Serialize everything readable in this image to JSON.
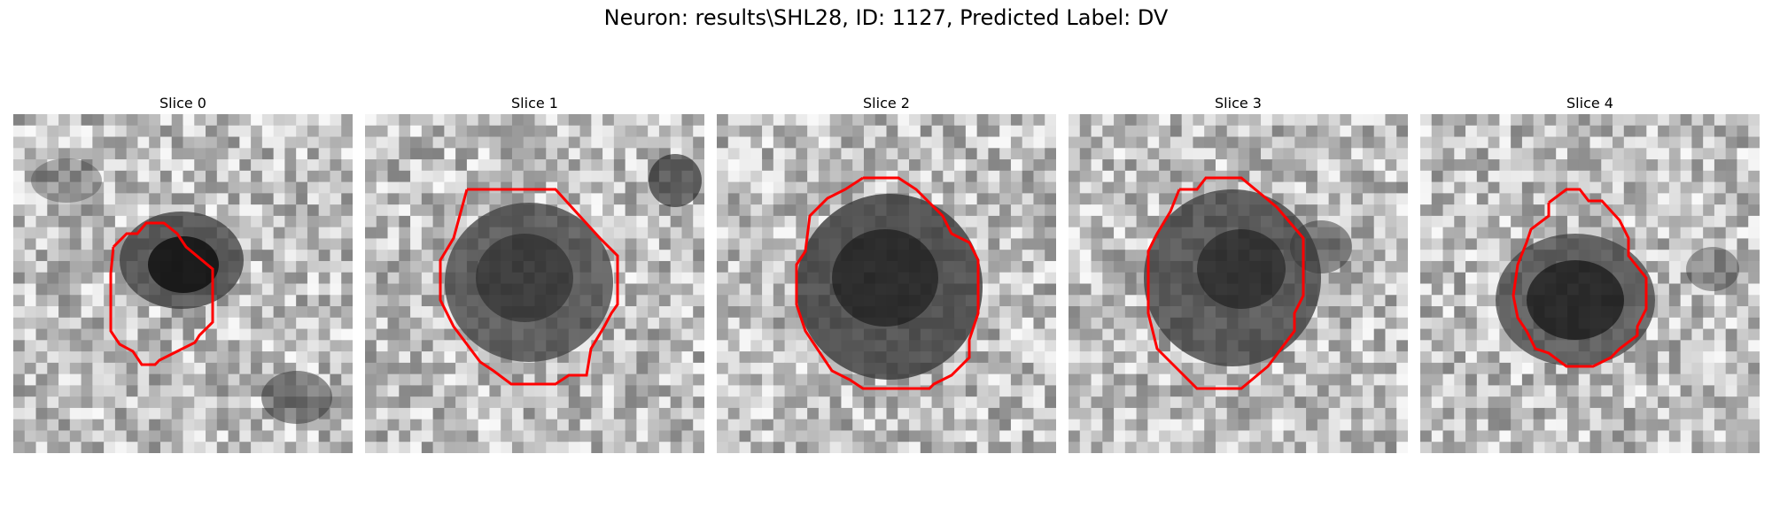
{
  "figure": {
    "title": "Neuron: results\\SHL28, ID: 1127, Predicted Label: DV"
  },
  "colors": {
    "contour": "#ff0000",
    "background": "#ffffff"
  },
  "panels": [
    {
      "title": "Slice 0"
    },
    {
      "title": "Slice 1"
    },
    {
      "title": "Slice 2"
    },
    {
      "title": "Slice 3"
    },
    {
      "title": "Slice 4"
    }
  ]
}
